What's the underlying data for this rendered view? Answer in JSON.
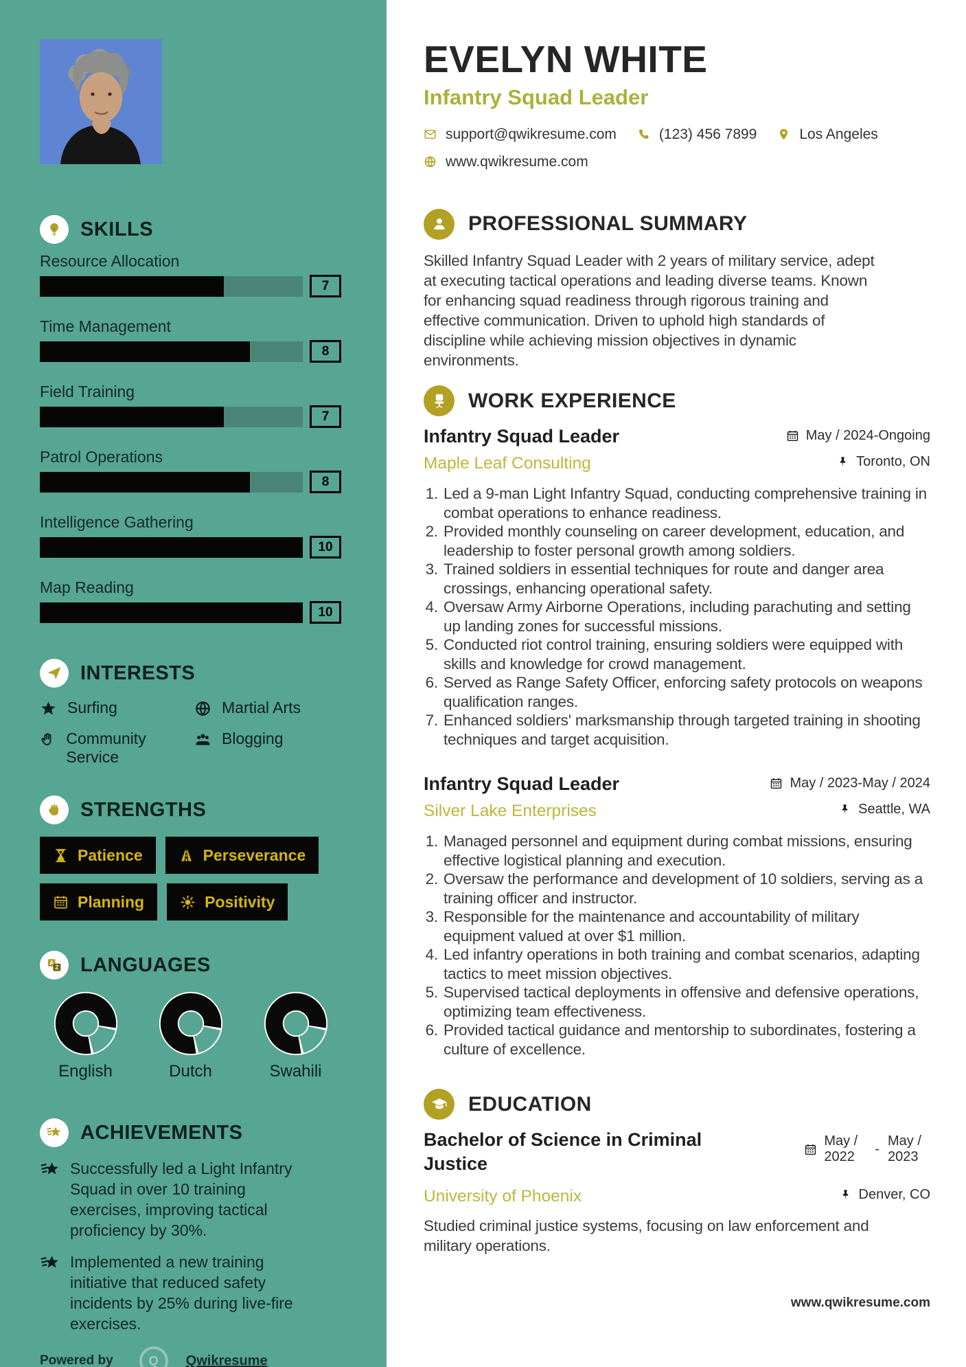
{
  "colors": {
    "sidebar_bg": "#57A593",
    "bar_track": "#4A8578",
    "bar_fill": "#060606",
    "accent_gold": "#B3A125",
    "strength_text_gold": "#D6B410",
    "role_olive": "#A9B23A",
    "company_gold": "#BEB63C"
  },
  "sidebar": {
    "skills": {
      "title": "SKILLS",
      "items": [
        {
          "label": "Resource Allocation",
          "value": 7,
          "max": 10
        },
        {
          "label": "Time Management",
          "value": 8,
          "max": 10
        },
        {
          "label": "Field Training",
          "value": 7,
          "max": 10
        },
        {
          "label": "Patrol Operations",
          "value": 8,
          "max": 10
        },
        {
          "label": "Intelligence Gathering",
          "value": 10,
          "max": 10
        },
        {
          "label": "Map Reading",
          "value": 10,
          "max": 10
        }
      ]
    },
    "interests": {
      "title": "INTERESTS",
      "items": [
        {
          "label": "Surfing",
          "icon": "star"
        },
        {
          "label": "Martial Arts",
          "icon": "globe"
        },
        {
          "label": "Community Service",
          "icon": "hand"
        },
        {
          "label": "Blogging",
          "icon": "users"
        }
      ]
    },
    "strengths": {
      "title": "STRENGTHS",
      "items": [
        {
          "label": "Patience",
          "icon": "hourglass"
        },
        {
          "label": "Perseverance",
          "icon": "road"
        },
        {
          "label": "Planning",
          "icon": "calendar"
        },
        {
          "label": "Positivity",
          "icon": "sun"
        }
      ]
    },
    "languages": {
      "title": "LANGUAGES",
      "items": [
        {
          "label": "English",
          "level_percent": 80
        },
        {
          "label": "Dutch",
          "level_percent": 80
        },
        {
          "label": "Swahili",
          "level_percent": 80
        }
      ]
    },
    "achievements": {
      "title": "ACHIEVEMENTS",
      "items": [
        "Successfully led a Light Infantry Squad in over 10 training exercises, improving tactical proficiency by 30%.",
        "Implemented a new training initiative that reduced safety incidents by 25% during live-fire exercises."
      ]
    },
    "powered": {
      "prefix": "Powered by",
      "brand": "Qwikresume"
    }
  },
  "header": {
    "name": "EVELYN WHITE",
    "role": "Infantry Squad Leader",
    "email": "support@qwikresume.com",
    "phone": "(123) 456 7899",
    "location": "Los Angeles",
    "website": "www.qwikresume.com"
  },
  "summary": {
    "title": "PROFESSIONAL SUMMARY",
    "text": "Skilled Infantry Squad Leader with 2 years of military service, adept at executing tactical operations and leading diverse teams. Known for enhancing squad readiness through rigorous training and effective communication. Driven to uphold high standards of discipline while achieving mission objectives in dynamic environments."
  },
  "experience": {
    "title": "WORK EXPERIENCE",
    "jobs": [
      {
        "role": "Infantry Squad Leader",
        "company": "Maple Leaf Consulting",
        "dates": "May / 2024-Ongoing",
        "location": "Toronto, ON",
        "bullets": [
          "Led a 9-man Light Infantry Squad, conducting comprehensive training in combat operations to enhance readiness.",
          "Provided monthly counseling on career development, education, and leadership to foster personal growth among soldiers.",
          "Trained soldiers in essential techniques for route and danger area crossings, enhancing operational safety.",
          "Oversaw Army Airborne Operations, including parachuting and setting up landing zones for successful missions.",
          "Conducted riot control training, ensuring soldiers were equipped with skills and knowledge for crowd management.",
          "Served as Range Safety Officer, enforcing safety protocols on weapons qualification ranges.",
          "Enhanced soldiers' marksmanship through targeted training in shooting techniques and target acquisition."
        ]
      },
      {
        "role": "Infantry Squad Leader",
        "company": "Silver Lake Enterprises",
        "dates": "May / 2023-May / 2024",
        "location": "Seattle, WA",
        "bullets": [
          "Managed personnel and equipment during combat missions, ensuring effective logistical planning and execution.",
          "Oversaw the performance and development of 10 soldiers, serving as a training officer and instructor.",
          "Responsible for the maintenance and accountability of military equipment valued at over $1 million.",
          "Led infantry operations in both training and combat scenarios, adapting tactics to meet mission objectives.",
          "Supervised tactical deployments in offensive and defensive operations, optimizing team effectiveness.",
          "Provided tactical guidance and mentorship to subordinates, fostering a culture of excellence."
        ]
      }
    ]
  },
  "education": {
    "title": "EDUCATION",
    "degree": "Bachelor of Science in Criminal Justice",
    "school": "University of Phoenix",
    "date_start": "May / 2022",
    "date_separator": "-",
    "date_end": "May / 2023",
    "location": "Denver, CO",
    "description": "Studied criminal justice systems, focusing on law enforcement and military operations."
  },
  "page_footer": {
    "website": "www.qwikresume.com"
  }
}
